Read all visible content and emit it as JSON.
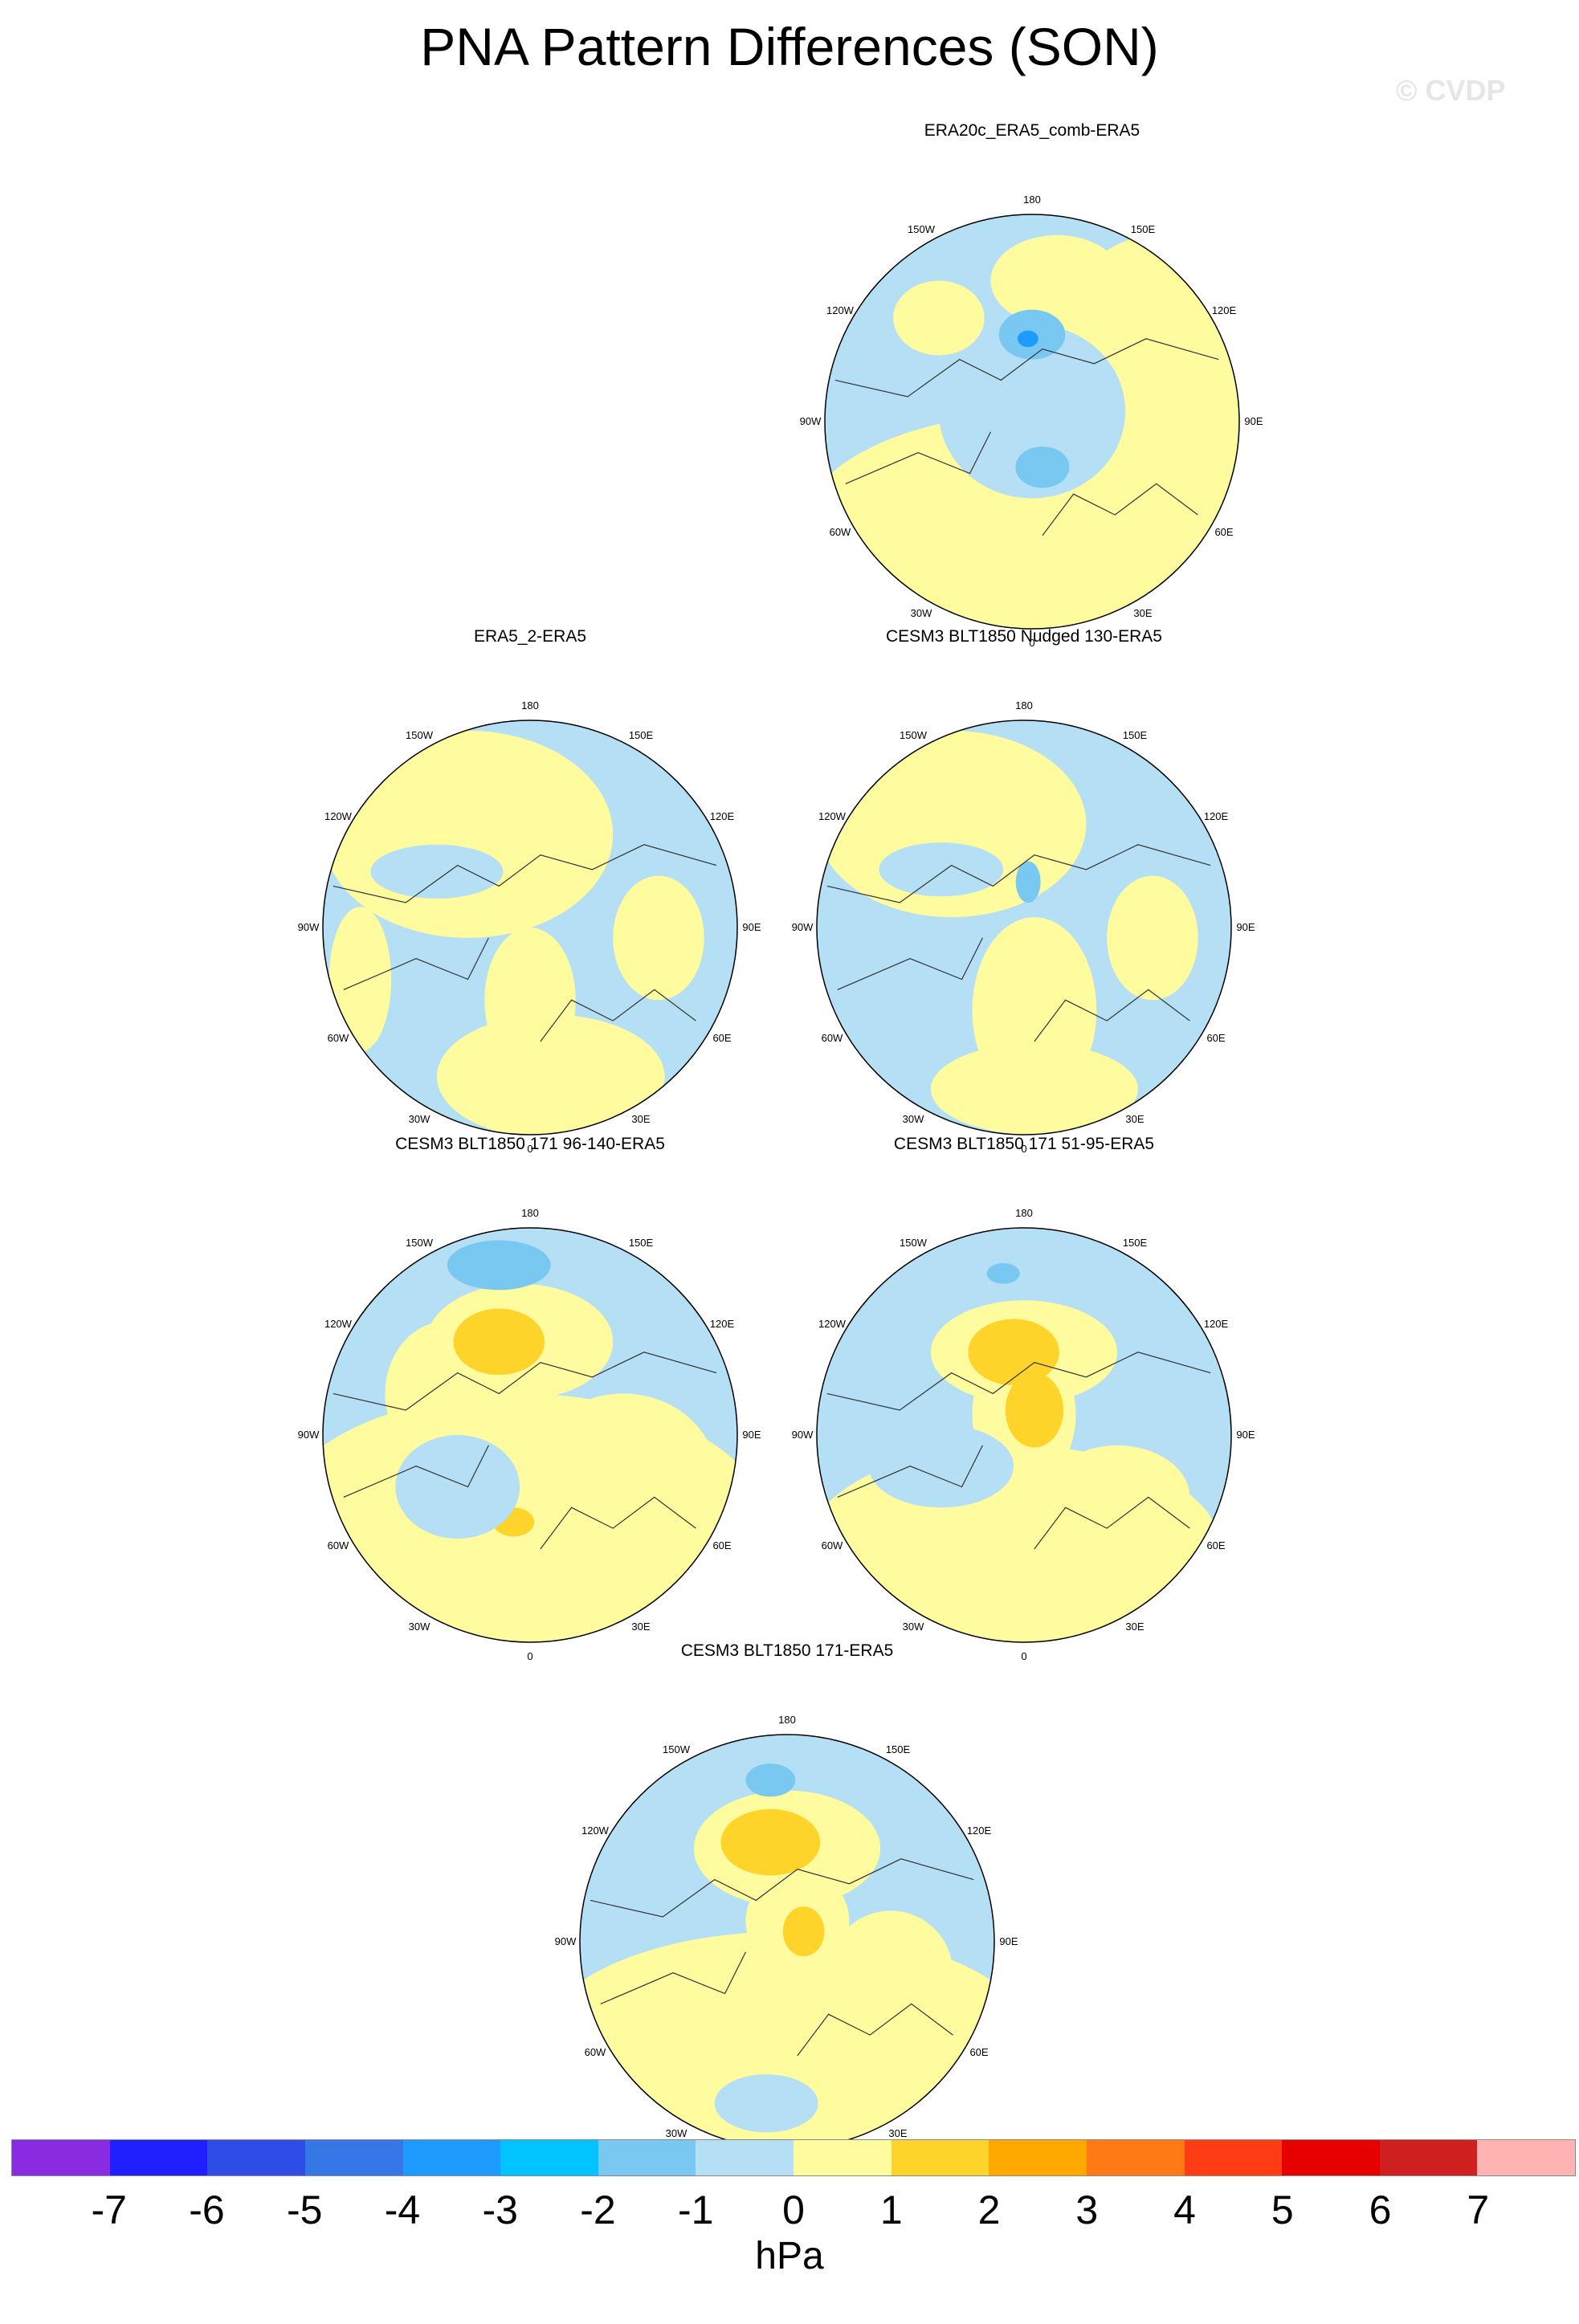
{
  "title": "PNA Pattern Differences (SON)",
  "watermark": "© CVDP",
  "longitude_labels": {
    "top": "180",
    "bottom": "0",
    "upper_left": "150W",
    "upper_right": "150E",
    "mid_upper_left": "120W",
    "mid_upper_right": "120E",
    "left": "90W",
    "right": "90E",
    "mid_lower_left": "60W",
    "mid_lower_right": "60E",
    "lower_left": "30W",
    "lower_right": "30E"
  },
  "panels": [
    {
      "title": "ERA20c_ERA5_comb-ERA5"
    },
    {
      "title": "ERA5_2-ERA5"
    },
    {
      "title": "CESM3 BLT1850 Nudged 130-ERA5"
    },
    {
      "title": "CESM3 BLT1850 171 96-140-ERA5"
    },
    {
      "title": "CESM3 BLT1850 171 51-95-ERA5"
    },
    {
      "title": "CESM3 BLT1850 171-ERA5"
    }
  ],
  "colorbar": {
    "colors": [
      "#8a2be2",
      "#1f1fff",
      "#2e4de6",
      "#3677e8",
      "#1e9bff",
      "#00c3ff",
      "#79c8f2",
      "#b4dff4",
      "#fffb9f",
      "#ffd42a",
      "#ffa800",
      "#ff7a14",
      "#ff3c14",
      "#e60000",
      "#d01f1f",
      "#ffb3b3"
    ],
    "ticks": [
      "-7",
      "-6",
      "-5",
      "-4",
      "-3",
      "-2",
      "-1",
      "0",
      "1",
      "2",
      "3",
      "4",
      "5",
      "6",
      "7"
    ],
    "unit": "hPa"
  },
  "map_colors": {
    "neg1": "#b4dff4",
    "neg2": "#79c8f2",
    "neg3": "#1e9bff",
    "pos1": "#fffb9f",
    "pos2": "#ffd42a"
  }
}
